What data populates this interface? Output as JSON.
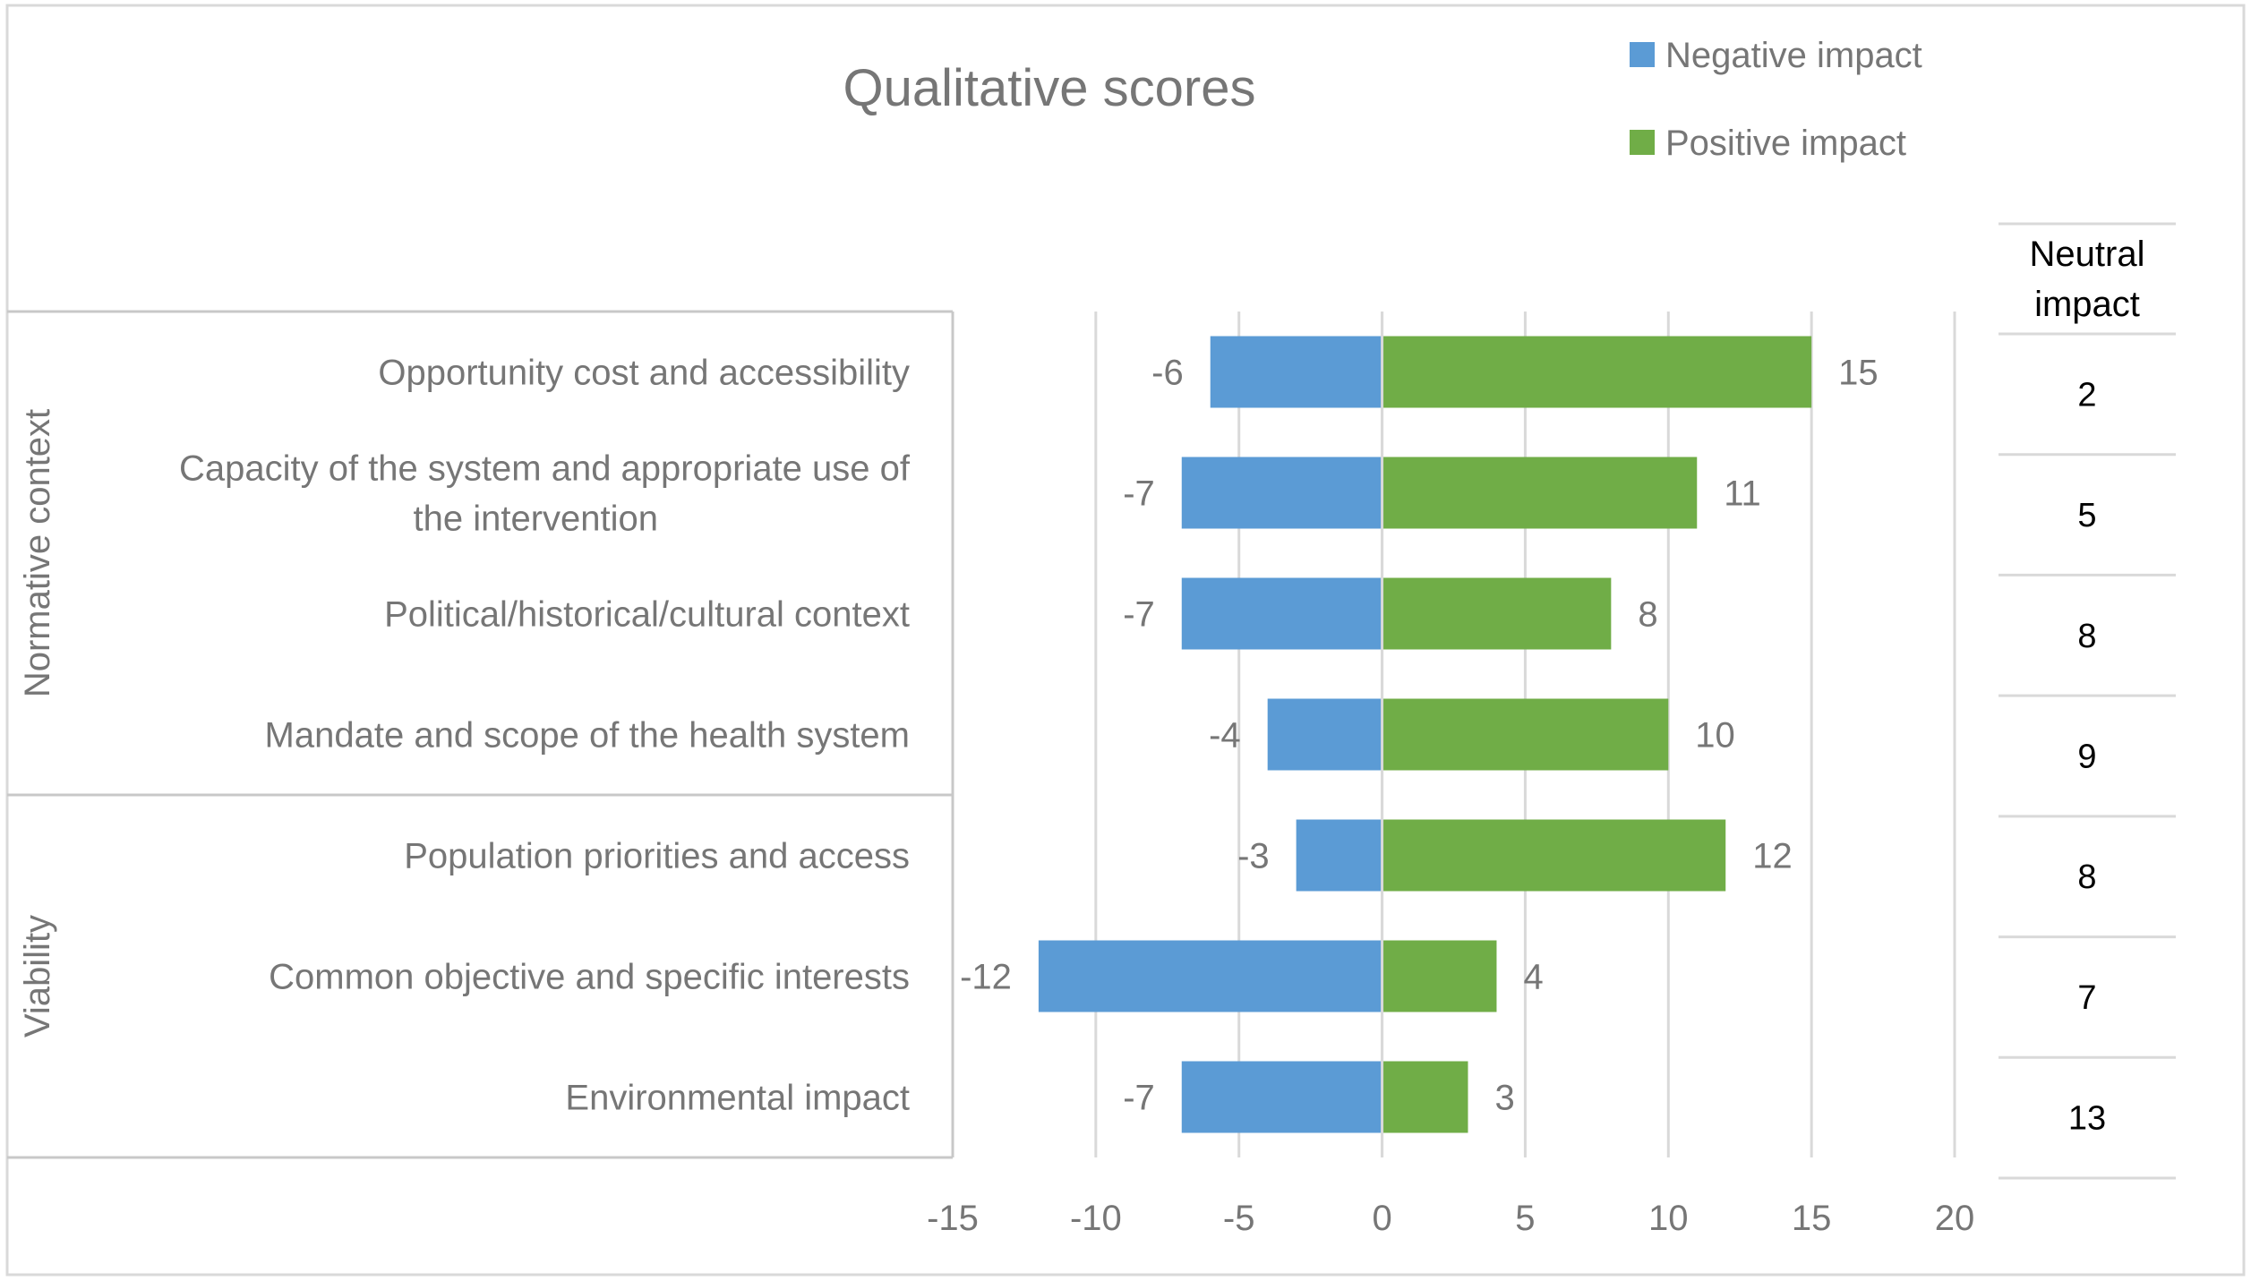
{
  "chart_data": {
    "type": "bar",
    "orientation": "horizontal",
    "stacked": "diverging",
    "title": "Qualitative scores",
    "categories": [
      "Opportunity cost and accessibility",
      "Capacity of the system and appropriate use of the intervention",
      "Political/historical/cultural context",
      "Mandate and scope of the health system",
      "Population priorities and access",
      "Common objective and specific interests",
      "Environmental impact"
    ],
    "category_label_lines": [
      [
        "Opportunity cost and accessibility"
      ],
      [
        "Capacity of the system and appropriate use of",
        "the intervention"
      ],
      [
        "Political/historical/cultural context"
      ],
      [
        "Mandate and scope of the health system"
      ],
      [
        "Population priorities and access"
      ],
      [
        "Common objective and specific interests"
      ],
      [
        "Environmental impact"
      ]
    ],
    "groups": [
      {
        "name": "Normative context",
        "categories": [
          0,
          1,
          2,
          3
        ]
      },
      {
        "name": "Viability",
        "categories": [
          4,
          5,
          6
        ]
      }
    ],
    "series": [
      {
        "name": "Negative impact",
        "color": "#5b9bd5",
        "values": [
          -6,
          -7,
          -7,
          -4,
          -3,
          -12,
          -7
        ]
      },
      {
        "name": "Positive impact",
        "color": "#70ad47",
        "values": [
          15,
          11,
          8,
          10,
          12,
          4,
          3
        ]
      }
    ],
    "xlim": [
      -15,
      20
    ],
    "xticks": [
      -15,
      -10,
      -5,
      0,
      5,
      10,
      15,
      20
    ],
    "grid": "vertical",
    "legend": "top-right",
    "neutral_table": {
      "header": "Neutral impact",
      "header_lines": [
        "Neutral",
        "impact"
      ],
      "values": [
        2,
        5,
        8,
        9,
        8,
        7,
        13
      ]
    }
  }
}
